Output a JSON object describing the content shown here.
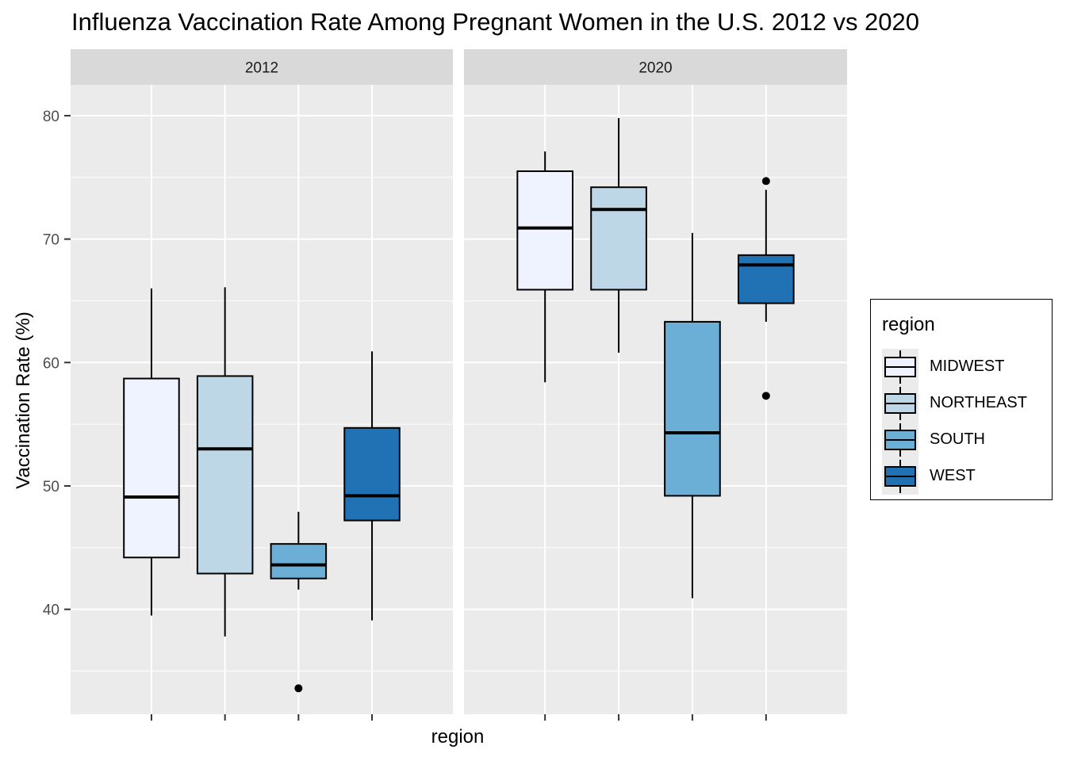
{
  "chart_data": {
    "type": "boxplot",
    "title": "Influenza Vaccination Rate Among Pregnant Women in the U.S. 2012 vs 2020",
    "xlabel": "region",
    "ylabel": "Vaccination Rate (%)",
    "y_ticks": [
      40,
      50,
      60,
      70,
      80
    ],
    "y_tick_labels": [
      "40",
      "50",
      "60",
      "70",
      "80"
    ],
    "ylim": [
      31.5,
      82.5
    ],
    "grid": true,
    "legend": {
      "title": "region",
      "placement": "right",
      "entries": [
        {
          "label": "MIDWEST",
          "color": "#eff3ff"
        },
        {
          "label": "NORTHEAST",
          "color": "#bdd7e7"
        },
        {
          "label": "SOUTH",
          "color": "#6baed6"
        },
        {
          "label": "WEST",
          "color": "#2171b5"
        }
      ]
    },
    "categories": [
      "MIDWEST",
      "NORTHEAST",
      "SOUTH",
      "WEST"
    ],
    "facets": [
      {
        "label": "2012",
        "boxes": [
          {
            "category": "MIDWEST",
            "min": 39.5,
            "q1": 44.2,
            "median": 49.1,
            "q3": 58.7,
            "max": 66.0,
            "outliers": []
          },
          {
            "category": "NORTHEAST",
            "min": 37.8,
            "q1": 42.9,
            "median": 53.0,
            "q3": 58.9,
            "max": 66.1,
            "outliers": []
          },
          {
            "category": "SOUTH",
            "min": 41.6,
            "q1": 42.5,
            "median": 43.6,
            "q3": 45.3,
            "max": 47.9,
            "outliers": [
              33.6
            ]
          },
          {
            "category": "WEST",
            "min": 39.1,
            "q1": 47.2,
            "median": 49.2,
            "q3": 54.7,
            "max": 60.9,
            "outliers": []
          }
        ]
      },
      {
        "label": "2020",
        "boxes": [
          {
            "category": "MIDWEST",
            "min": 58.4,
            "q1": 65.9,
            "median": 70.9,
            "q3": 75.5,
            "max": 77.1,
            "outliers": []
          },
          {
            "category": "NORTHEAST",
            "min": 60.8,
            "q1": 65.9,
            "median": 72.4,
            "q3": 74.2,
            "max": 79.8,
            "outliers": []
          },
          {
            "category": "SOUTH",
            "min": 40.9,
            "q1": 49.2,
            "median": 54.3,
            "q3": 63.3,
            "max": 70.5,
            "outliers": []
          },
          {
            "category": "WEST",
            "min": 63.3,
            "q1": 64.8,
            "median": 67.9,
            "q3": 68.7,
            "max": 74.0,
            "outliers": [
              74.7,
              57.3
            ]
          }
        ]
      }
    ]
  }
}
